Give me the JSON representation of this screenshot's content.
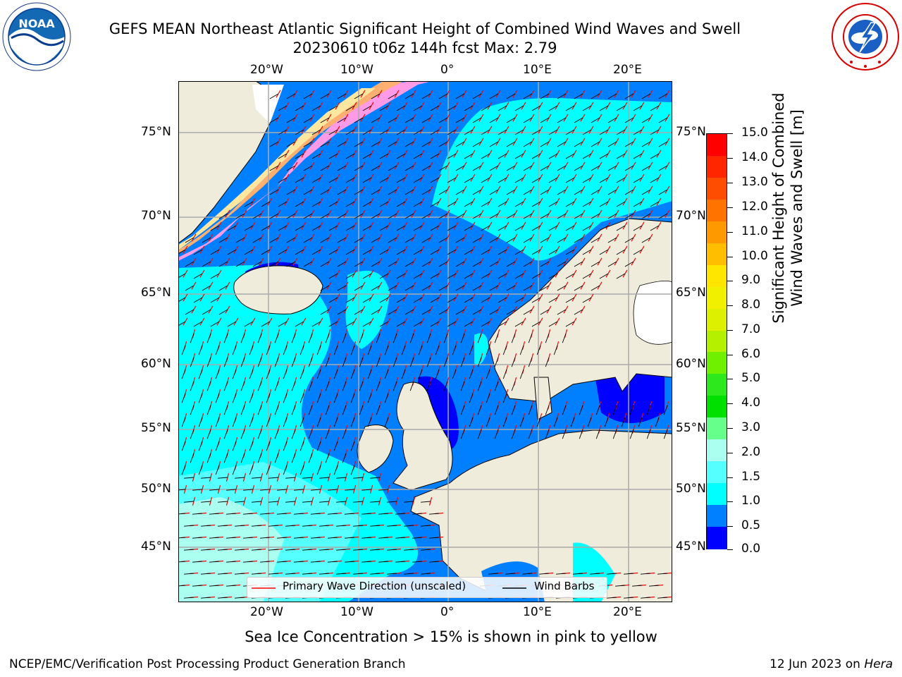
{
  "title": {
    "line1": "GEFS MEAN Northeast Atlantic Significant Height of Combined Wind Waves and Swell",
    "line2": "20230610 t06z 144h fcst   Max: 2.79"
  },
  "logos": {
    "left": "noara-logo",
    "left_ring_text": "NATIONAL OCEANIC AND ATMOSPHERIC ADMINISTRATION",
    "left_bottom_text": "U.S. DEPARTMENT OF COMMERCE",
    "left_center_text": "NOAA",
    "right": "nws-logo",
    "right_ring_text": "NATIONAL WEATHER SERVICE"
  },
  "axes": {
    "lon_labels": [
      "20°W",
      "10°W",
      "0°",
      "10°E",
      "20°E"
    ],
    "lat_labels": [
      "75°N",
      "70°N",
      "65°N",
      "60°N",
      "55°N",
      "50°N",
      "45°N"
    ]
  },
  "colorbar": {
    "label_line1": "Significant Height of Combined",
    "label_line2": "Wind Waves and Swell [m]",
    "ticks": [
      "15.0",
      "14.0",
      "13.0",
      "12.0",
      "11.0",
      "10.0",
      "9.0",
      "8.0",
      "7.0",
      "6.0",
      "5.0",
      "4.0",
      "3.0",
      "2.0",
      "1.5",
      "1.0",
      "0.5",
      "0.0"
    ],
    "colors_top_to_bottom": [
      "#ff0000",
      "#ff2600",
      "#ff4d00",
      "#ff7300",
      "#ff9900",
      "#ffbf00",
      "#ffe600",
      "#f0f000",
      "#dcf000",
      "#b4f000",
      "#6ef000",
      "#2ee81e",
      "#00e000",
      "#66ff8c",
      "#aafff0",
      "#55ffff",
      "#00ffff",
      "#0080ff",
      "#0000ff"
    ]
  },
  "legend": {
    "primary_wave": "Primary Wave Direction (unscaled)",
    "wind_barbs": "Wind Barbs"
  },
  "subtitle": "Sea Ice Concentration > 15% is shown in pink to yellow",
  "footer": {
    "left": "NCEP/EMC/Verification Post Processing Product Generation Branch",
    "right_date": "12 Jun 2023 on ",
    "right_host": "Hera"
  }
}
